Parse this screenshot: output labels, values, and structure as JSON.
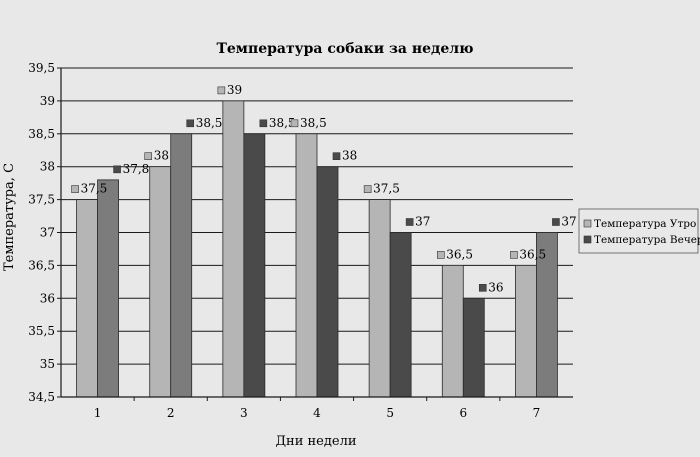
{
  "chart_data": {
    "type": "bar",
    "title": "Температура собаки за неделю",
    "xlabel": "Дни недели",
    "ylabel": "Температура, С",
    "categories": [
      "1",
      "2",
      "3",
      "4",
      "5",
      "6",
      "7"
    ],
    "ylim": [
      34.5,
      39.5
    ],
    "yticks": [
      "34,5",
      "35",
      "35,5",
      "36",
      "36,5",
      "37",
      "37,5",
      "38",
      "38,5",
      "39",
      "39,5"
    ],
    "grid": true,
    "legend_position": "right",
    "series": [
      {
        "name": "Температура Утро",
        "values": [
          37.5,
          38,
          39,
          38.5,
          37.5,
          36.5,
          36.5
        ],
        "labels": [
          "37,5",
          "38",
          "39",
          "38,5",
          "37,5",
          "36,5",
          "36,5"
        ],
        "color": "#b5b5b5"
      },
      {
        "name": "Температура Вечер",
        "values": [
          37.8,
          38.5,
          38.5,
          38,
          37,
          36,
          37
        ],
        "labels": [
          "37,8",
          "38,5",
          "38,5",
          "38",
          "37",
          "36",
          "37"
        ],
        "color": "#7c7c7c"
      }
    ]
  }
}
